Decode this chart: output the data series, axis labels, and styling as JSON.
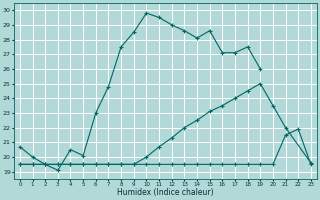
{
  "xlabel": "Humidex (Indice chaleur)",
  "background_color": "#b2d8d8",
  "grid_color": "#ffffff",
  "line_color": "#006666",
  "xlim": [
    -0.5,
    23.5
  ],
  "ylim": [
    18.5,
    30.5
  ],
  "xticks": [
    0,
    1,
    2,
    3,
    4,
    5,
    6,
    7,
    8,
    9,
    10,
    11,
    12,
    13,
    14,
    15,
    16,
    17,
    18,
    19,
    20,
    21,
    22,
    23
  ],
  "yticks": [
    19,
    20,
    21,
    22,
    23,
    24,
    25,
    26,
    27,
    28,
    29,
    30
  ],
  "line1_x": [
    0,
    1,
    2,
    3,
    4,
    5,
    6,
    7,
    8,
    9,
    10,
    11,
    12,
    13,
    14,
    15,
    16,
    17,
    18,
    19
  ],
  "line1_y": [
    20.7,
    20.0,
    19.5,
    19.1,
    20.5,
    20.1,
    23.0,
    24.8,
    27.5,
    28.5,
    29.8,
    29.5,
    29.0,
    28.6,
    28.1,
    28.6,
    27.1,
    27.1,
    27.5,
    26.0
  ],
  "line2_x": [
    0,
    1,
    2,
    3,
    4,
    5,
    6,
    7,
    8,
    9,
    10,
    11,
    12,
    13,
    14,
    15,
    16,
    17,
    18,
    19,
    20,
    21,
    22,
    23
  ],
  "line2_y": [
    19.5,
    19.5,
    19.5,
    19.5,
    19.5,
    19.5,
    19.5,
    19.5,
    19.5,
    19.5,
    19.5,
    19.5,
    19.5,
    19.5,
    19.5,
    19.5,
    19.5,
    19.5,
    19.5,
    19.5,
    19.5,
    21.5,
    21.9,
    19.5
  ],
  "line3_x": [
    0,
    1,
    2,
    3,
    4,
    5,
    6,
    7,
    8,
    9,
    10,
    11,
    12,
    13,
    14,
    15,
    16,
    17,
    18,
    19,
    20,
    21,
    23
  ],
  "line3_y": [
    19.5,
    19.5,
    19.5,
    19.5,
    19.5,
    19.5,
    19.5,
    19.5,
    19.5,
    19.5,
    20.0,
    20.7,
    21.3,
    22.0,
    22.5,
    23.1,
    23.5,
    24.0,
    24.5,
    25.0,
    23.5,
    22.0,
    19.6
  ]
}
